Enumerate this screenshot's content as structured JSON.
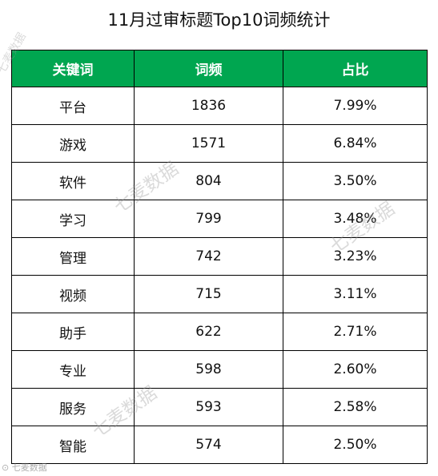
{
  "title": "11月过审标题Top10词频统计",
  "columns": [
    "关键词",
    "词频",
    "占比"
  ],
  "rows": [
    {
      "keyword": "平台",
      "freq": "1836",
      "ratio": "7.99%"
    },
    {
      "keyword": "游戏",
      "freq": "1571",
      "ratio": "6.84%"
    },
    {
      "keyword": "软件",
      "freq": "804",
      "ratio": "3.50%"
    },
    {
      "keyword": "学习",
      "freq": "799",
      "ratio": "3.48%"
    },
    {
      "keyword": "管理",
      "freq": "742",
      "ratio": "3.23%"
    },
    {
      "keyword": "视频",
      "freq": "715",
      "ratio": "3.11%"
    },
    {
      "keyword": "助手",
      "freq": "622",
      "ratio": "2.71%"
    },
    {
      "keyword": "专业",
      "freq": "598",
      "ratio": "2.60%"
    },
    {
      "keyword": "服务",
      "freq": "593",
      "ratio": "2.58%"
    },
    {
      "keyword": "智能",
      "freq": "574",
      "ratio": "2.50%"
    }
  ],
  "watermark": "七麦数据",
  "colors": {
    "header_bg": "#00a650",
    "header_text": "#ffffff",
    "border": "#000000"
  }
}
